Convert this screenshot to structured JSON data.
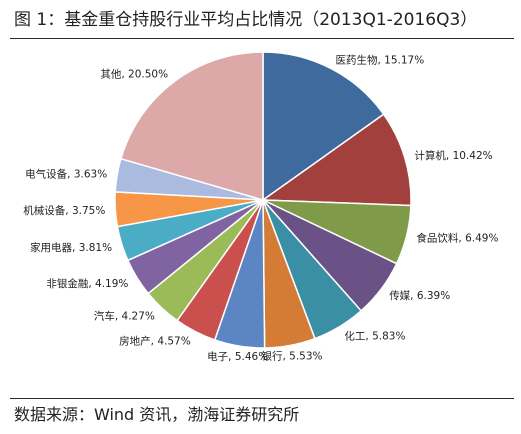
{
  "figure": {
    "title": "图 1：基金重仓持股行业平均占比情况（2013Q1-2016Q3）",
    "source": "数据来源：Wind 资讯，渤海证券研究所"
  },
  "chart_data": {
    "type": "pie",
    "title": "基金重仓持股行业平均占比情况（2013Q1-2016Q3）",
    "start_angle": "12 o'clock",
    "direction": "clockwise",
    "labels_outside": true,
    "legend": "none",
    "slices": [
      {
        "name": "医药生物",
        "value": 15.17,
        "display": "15.17%",
        "color": "#3F6A9E"
      },
      {
        "name": "计算机",
        "value": 10.42,
        "display": "10.42%",
        "color": "#A2403E"
      },
      {
        "name": "食品饮料",
        "value": 6.49,
        "display": "6.49%",
        "color": "#7F9A49"
      },
      {
        "name": "传媒",
        "value": 6.39,
        "display": "6.39%",
        "color": "#6A5286"
      },
      {
        "name": "化工",
        "value": 5.83,
        "display": "5.83%",
        "color": "#3A8FA5"
      },
      {
        "name": "银行",
        "value": 5.53,
        "display": "5.53%",
        "color": "#D47B35"
      },
      {
        "name": "电子",
        "value": 5.46,
        "display": "5.46%",
        "color": "#5C86C3"
      },
      {
        "name": "房地产",
        "value": 4.57,
        "display": "4.57%",
        "color": "#C9504D"
      },
      {
        "name": "汽车",
        "value": 4.27,
        "display": "4.27%",
        "color": "#9BBB59"
      },
      {
        "name": "非银金融",
        "value": 4.19,
        "display": "4.19%",
        "color": "#8064A2"
      },
      {
        "name": "家用电器",
        "value": 3.81,
        "display": "3.81%",
        "color": "#4BACC6"
      },
      {
        "name": "机械设备",
        "value": 3.75,
        "display": "3.75%",
        "color": "#F79646"
      },
      {
        "name": "电气设备",
        "value": 3.63,
        "display": "3.63%",
        "color": "#AABBDF"
      },
      {
        "name": "其他",
        "value": 20.5,
        "display": "20.50%",
        "color": "#DCA9A8"
      }
    ]
  }
}
